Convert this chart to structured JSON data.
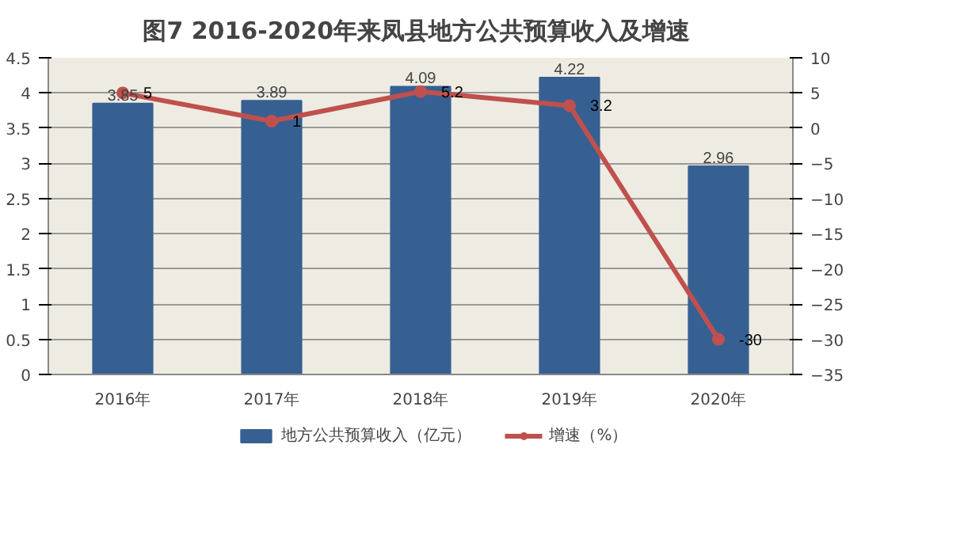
{
  "chart_data": {
    "type": "bar",
    "title": "图7  2016-2020年来凤县地方公共预算收入及增速",
    "categories": [
      "2016年",
      "2017年",
      "2018年",
      "2019年",
      "2020年"
    ],
    "series": [
      {
        "name": "地方公共预算收入（亿元）",
        "color": "#376092",
        "values": [
          3.85,
          3.89,
          4.09,
          4.22,
          2.96
        ]
      },
      {
        "name": "增速（%）",
        "type": "line",
        "axis": "y2",
        "color": "#c0504d",
        "marker": "circle",
        "values": [
          5,
          1,
          5.2,
          3.2,
          -30
        ]
      }
    ],
    "ylim": [
      0,
      4.5
    ],
    "yticks": [
      0,
      0.5,
      1,
      1.5,
      2,
      2.5,
      3,
      3.5,
      4,
      4.5
    ],
    "y2lim": [
      -35,
      10
    ],
    "y2ticks": [
      -35,
      -30,
      -25,
      -20,
      -15,
      -10,
      -5,
      0,
      5,
      10
    ],
    "grid": "y",
    "legend": "bottom",
    "data_labels": true
  }
}
